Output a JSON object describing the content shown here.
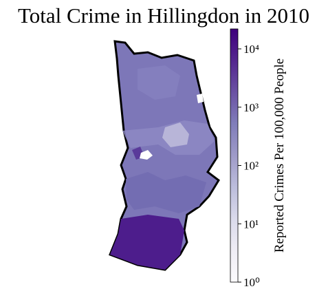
{
  "map": {
    "title": "Total Crime in Hillingdon in 2010",
    "colorbar": {
      "label": "Reported Crimes Per 100,000 People",
      "scale": "log",
      "lim": [
        1,
        22000
      ],
      "ticks": [
        {
          "value": 1,
          "label": "10⁰"
        },
        {
          "value": 10,
          "label": "10¹"
        },
        {
          "value": 100,
          "label": "10²"
        },
        {
          "value": 1000,
          "label": "10³"
        },
        {
          "value": 10000,
          "label": "10⁴"
        }
      ],
      "colormap": [
        "#fcfbfd",
        "#efedf5",
        "#dadaeb",
        "#bcbddc",
        "#9e9ac8",
        "#807dba",
        "#6a51a3",
        "#54278f",
        "#3f007d"
      ]
    }
  }
}
